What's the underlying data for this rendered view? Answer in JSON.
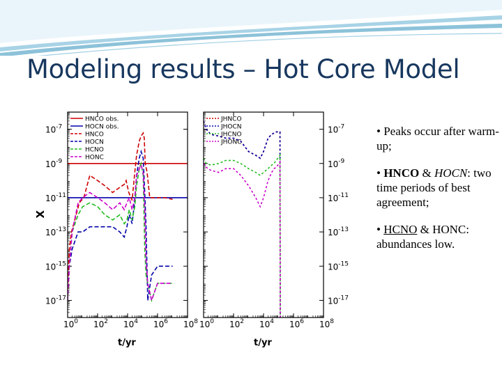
{
  "slide": {
    "title": "Modeling results – Hot Core Model",
    "colors": {
      "title": "#17375e",
      "band_light": "#dbeef7",
      "band_mid": "#a8d3e6",
      "band_dark": "#5ba8c9"
    }
  },
  "bullets": [
    {
      "prefix": "• ",
      "parts": [
        {
          "text": "Peaks occur after warm-up;",
          "style": ""
        }
      ]
    },
    {
      "prefix": "• ",
      "parts": [
        {
          "text": "HNCO",
          "style": "b"
        },
        {
          "text": " & ",
          "style": ""
        },
        {
          "text": "HOCN",
          "style": "i"
        },
        {
          "text": ": two time periods of best agreement;",
          "style": ""
        }
      ]
    },
    {
      "prefix": "• ",
      "parts": [
        {
          "text": "HCNO",
          "style": "u"
        },
        {
          "text": " & HONC: abundances low.",
          "style": ""
        }
      ]
    }
  ],
  "chart_data": [
    {
      "type": "line",
      "panel": "left",
      "xlabel": "t/yr",
      "ylabel": "X",
      "xscale": "log",
      "yscale": "log",
      "xlim": [
        1,
        100000000.0
      ],
      "ylim": [
        1e-18,
        1e-06
      ],
      "x_ticks": [
        "10^0",
        "10^2",
        "10^4",
        "10^6",
        "10^8"
      ],
      "y_ticks": [
        "10^-7",
        "10^-9",
        "10^-11",
        "10^-13",
        "10^-15",
        "10^-17"
      ],
      "legend": "top-left",
      "series": [
        {
          "name": "HNCO obs.",
          "color": "#cc0000",
          "dash": "solid",
          "x": [
            1,
            100000000.0
          ],
          "y": [
            1e-09,
            1e-09
          ]
        },
        {
          "name": "HOCN obs.",
          "color": "#0000aa",
          "dash": "solid",
          "x": [
            1,
            100000000.0
          ],
          "y": [
            1e-11,
            1e-11
          ]
        },
        {
          "name": "HNCO",
          "color": "#cc0000",
          "dash": "dashed",
          "x": [
            1,
            1.3,
            1.8,
            3,
            6,
            12,
            30,
            100,
            300,
            1000,
            3000,
            6000,
            8000,
            12000,
            20000,
            30000,
            40000,
            60000,
            80000,
            110000,
            130000,
            150000,
            200000,
            300000,
            1000000.0,
            3000000.0,
            10000000.0
          ],
          "y": [
            2e-17,
            1e-14,
            1e-13,
            5e-13,
            5e-12,
            1e-11,
            2e-10,
            1e-10,
            5e-11,
            2e-11,
            4e-11,
            6e-11,
            1e-10,
            2e-11,
            7e-12,
            3e-10,
            3e-09,
            2e-08,
            4e-08,
            6e-08,
            3e-08,
            1e-09,
            3e-10,
            1e-11,
            1e-11,
            1e-11,
            8e-12
          ]
        },
        {
          "name": "HOCN",
          "color": "#0000aa",
          "dash": "dashed",
          "x": [
            1,
            1.3,
            2,
            5,
            10,
            30,
            100,
            300,
            1000,
            3000,
            6000,
            9000,
            13000,
            20000,
            30000,
            40000,
            60000,
            80000,
            110000,
            140000,
            170000,
            220000,
            400000,
            1000000.0,
            3000000.0,
            10000000.0
          ],
          "y": [
            1e-17,
            1e-15,
            1e-14,
            1e-13,
            1e-13,
            2e-13,
            2e-13,
            2e-13,
            2e-13,
            1e-13,
            5e-14,
            2e-13,
            1e-12,
            3e-13,
            8e-12,
            2e-10,
            2e-09,
            5e-09,
            2e-09,
            2e-11,
            2e-13,
            1e-17,
            3e-16,
            1e-15,
            1e-15,
            1e-15
          ]
        },
        {
          "name": "HCNO",
          "color": "#22bb22",
          "dash": "dashed",
          "x": [
            1,
            1.3,
            2,
            5,
            10,
            30,
            100,
            300,
            1000,
            3000,
            6000,
            9000,
            13000,
            20000,
            30000,
            40000,
            60000,
            80000,
            110000,
            140000,
            170000,
            220000,
            400000,
            1000000.0,
            3000000.0,
            10000000.0
          ],
          "y": [
            1e-17,
            1e-15,
            1e-13,
            1e-12,
            3e-12,
            5e-12,
            3e-12,
            1e-12,
            5e-13,
            1e-12,
            3e-13,
            5e-13,
            2e-12,
            5e-13,
            3e-12,
            5e-11,
            5e-10,
            1e-09,
            2e-10,
            1e-14,
            3e-16,
            1e-16,
            1e-17,
            1e-16,
            1e-16,
            1e-16
          ]
        },
        {
          "name": "HONC",
          "color": "#cc00cc",
          "dash": "dashed",
          "x": [
            1,
            1.3,
            2,
            5,
            10,
            30,
            100,
            300,
            1000,
            3000,
            6000,
            9000,
            13000,
            20000,
            30000,
            40000,
            60000,
            80000,
            110000,
            140000,
            170000,
            220000,
            400000,
            1000000.0,
            3000000.0,
            10000000.0
          ],
          "y": [
            1e-17,
            1e-15,
            1e-13,
            5e-12,
            1e-11,
            2e-11,
            1e-11,
            5e-12,
            2e-12,
            5e-12,
            2e-12,
            5e-12,
            1e-11,
            2e-12,
            1e-11,
            2e-10,
            5e-10,
            8e-10,
            3e-10,
            2e-12,
            2e-15,
            1e-16,
            1e-17,
            1e-16,
            1e-16,
            1e-16
          ]
        }
      ]
    },
    {
      "type": "line",
      "panel": "right",
      "xlabel": "t/yr",
      "ylabel": "",
      "xscale": "log",
      "yscale": "log",
      "xlim": [
        1,
        100000000.0
      ],
      "ylim": [
        1e-18,
        1e-06
      ],
      "x_ticks": [
        "10^0",
        "10^2",
        "10^4",
        "10^6",
        "10^8"
      ],
      "y_ticks": [
        "10^-7",
        "10^-9",
        "10^-11",
        "10^-13",
        "10^-15",
        "10^-17"
      ],
      "y_ticks_side": "right",
      "legend": "top-left",
      "series": [
        {
          "name": "JHNCO",
          "color": "#cc0000",
          "dash": "dotted",
          "x": [
            1,
            1.5,
            3,
            10,
            30,
            100,
            300,
            1000,
            3000,
            6000,
            10000,
            20000,
            35000,
            50000,
            70000,
            90000,
            110000,
            125000,
            130000
          ],
          "y": [
            3e-07,
            1e-07,
            5e-08,
            4e-08,
            3e-08,
            3e-08,
            2e-08,
            5e-09,
            3e-09,
            2e-09,
            5e-09,
            3e-08,
            5e-08,
            6e-08,
            7e-08,
            7e-08,
            7e-08,
            7e-08,
            1e-18
          ]
        },
        {
          "name": "JHOCN",
          "color": "#0000aa",
          "dash": "dotted",
          "x": [
            1,
            1.5,
            3,
            10,
            30,
            100,
            300,
            1000,
            3000,
            6000,
            10000,
            20000,
            35000,
            50000,
            70000,
            90000,
            110000,
            125000,
            130000
          ],
          "y": [
            3e-07,
            1e-07,
            5e-08,
            4e-08,
            3e-08,
            3e-08,
            2e-08,
            5e-09,
            3e-09,
            2e-09,
            5e-09,
            3e-08,
            5e-08,
            6e-08,
            7e-08,
            7e-08,
            7e-08,
            7e-08,
            1e-18
          ]
        },
        {
          "name": "JHCNO",
          "color": "#22bb22",
          "dash": "dotted",
          "x": [
            1,
            1.5,
            3,
            10,
            30,
            100,
            300,
            1000,
            3000,
            6000,
            10000,
            20000,
            35000,
            50000,
            70000,
            90000,
            110000,
            125000,
            130000
          ],
          "y": [
            2e-09,
            1e-09,
            8e-10,
            1e-09,
            1.5e-09,
            1.5e-09,
            1e-09,
            5e-10,
            3e-10,
            2e-10,
            3e-10,
            5e-10,
            8e-10,
            1e-09,
            1.5e-09,
            2e-09,
            2.5e-09,
            3e-09,
            1e-18
          ]
        },
        {
          "name": "JHONC",
          "color": "#cc00cc",
          "dash": "dotted",
          "x": [
            1,
            1.5,
            3,
            10,
            30,
            100,
            300,
            1000,
            3000,
            6000,
            10000,
            20000,
            35000,
            50000,
            70000,
            90000,
            110000,
            125000,
            130000
          ],
          "y": [
            1e-09,
            6e-10,
            4e-10,
            3e-10,
            5e-10,
            5e-10,
            2e-10,
            5e-11,
            1e-11,
            3e-12,
            1e-11,
            1e-10,
            3e-10,
            5e-10,
            6e-10,
            8e-10,
            1e-09,
            1.2e-09,
            1e-18
          ]
        }
      ]
    }
  ]
}
